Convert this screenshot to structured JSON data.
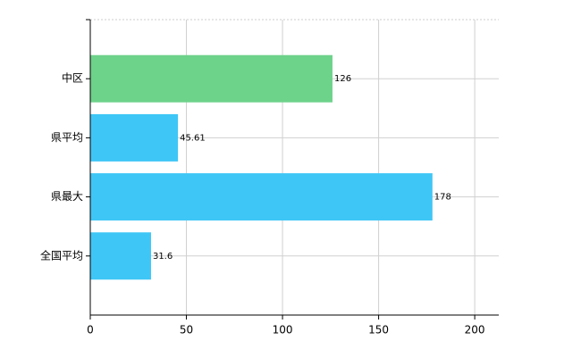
{
  "chart_data": {
    "type": "hbar",
    "categories": [
      "中区",
      "県平均",
      "県最大",
      "全国平均"
    ],
    "values": [
      126,
      45.61,
      178,
      31.6
    ],
    "colors": [
      "#6dd28a",
      "#3ec6f6",
      "#3ec6f6",
      "#3ec6f6"
    ],
    "xlim": [
      0,
      212.5
    ],
    "xticks": [
      0,
      50,
      100,
      150,
      200
    ],
    "grid": true
  }
}
